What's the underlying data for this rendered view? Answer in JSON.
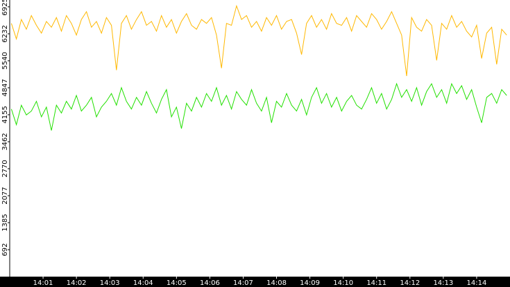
{
  "chart_data": {
    "type": "line",
    "x": [
      0.05,
      0.2,
      0.35,
      0.5,
      0.65,
      0.8,
      0.95,
      1.1,
      1.25,
      1.4,
      1.55,
      1.7,
      1.85,
      2,
      2.15,
      2.3,
      2.45,
      2.6,
      2.75,
      2.9,
      3.05,
      3.2,
      3.35,
      3.5,
      3.65,
      3.8,
      3.95,
      4.1,
      4.25,
      4.4,
      4.55,
      4.7,
      4.85,
      5,
      5.15,
      5.3,
      5.45,
      5.6,
      5.75,
      5.9,
      6.05,
      6.2,
      6.35,
      6.5,
      6.65,
      6.8,
      6.95,
      7.1,
      7.25,
      7.4,
      7.55,
      7.7,
      7.85,
      8,
      8.15,
      8.3,
      8.45,
      8.6,
      8.75,
      8.9,
      9.05,
      9.2,
      9.35,
      9.5,
      9.65,
      9.8,
      9.95,
      10.1,
      10.25,
      10.4,
      10.55,
      10.7,
      10.85,
      11,
      11.15,
      11.3,
      11.45,
      11.6,
      11.75,
      11.9,
      12.05,
      12.2,
      12.35,
      12.5,
      12.65,
      12.8,
      12.95,
      13.1,
      13.25,
      13.4,
      13.55,
      13.7,
      13.85,
      14,
      14.15,
      14.3,
      14.45,
      14.6,
      14.75,
      14.9
    ],
    "series": [
      {
        "color": "#ffb800",
        "values": [
          6500,
          6100,
          6600,
          6350,
          6700,
          6450,
          6250,
          6550,
          6400,
          6650,
          6300,
          6700,
          6500,
          6200,
          6600,
          6800,
          6400,
          6550,
          6250,
          6650,
          6450,
          5300,
          6500,
          6700,
          6350,
          6600,
          6800,
          6450,
          6550,
          6300,
          6700,
          6400,
          6600,
          6250,
          6550,
          6750,
          6450,
          6350,
          6600,
          6500,
          6650,
          6200,
          5350,
          6500,
          6450,
          6950,
          6600,
          6700,
          6400,
          6550,
          6300,
          6650,
          6450,
          6700,
          6350,
          6550,
          6600,
          6250,
          5700,
          6500,
          6700,
          6400,
          6600,
          6350,
          6750,
          6500,
          6450,
          6650,
          6300,
          6700,
          6550,
          6400,
          6750,
          6600,
          6350,
          6550,
          6800,
          6500,
          6200,
          5150,
          6650,
          6400,
          6300,
          6600,
          6450,
          5550,
          6500,
          6350,
          6700,
          6400,
          6550,
          6300,
          6150,
          6450,
          5600,
          6250,
          6400,
          5450,
          6350,
          6200
        ]
      },
      {
        "color": "#22e000",
        "values": [
          4300,
          3900,
          4400,
          4150,
          4250,
          4500,
          4100,
          4350,
          3750,
          4400,
          4200,
          4500,
          4300,
          4650,
          4250,
          4400,
          4600,
          4100,
          4350,
          4500,
          4700,
          4400,
          4850,
          4500,
          4300,
          4600,
          4400,
          4750,
          4450,
          4200,
          4550,
          4800,
          4100,
          4350,
          3800,
          4450,
          4250,
          4600,
          4350,
          4700,
          4500,
          4850,
          4400,
          4650,
          4300,
          4750,
          4550,
          4400,
          4800,
          4450,
          4250,
          4600,
          3950,
          4500,
          4350,
          4700,
          4400,
          4250,
          4550,
          4150,
          4600,
          4850,
          4450,
          4700,
          4350,
          4600,
          4250,
          4500,
          4650,
          4400,
          4300,
          4550,
          4850,
          4450,
          4700,
          4300,
          4550,
          4950,
          4600,
          4800,
          4500,
          4850,
          4400,
          4750,
          4950,
          4600,
          4800,
          4450,
          4950,
          4700,
          4900,
          4550,
          4800,
          4350,
          3950,
          4600,
          4700,
          4450,
          4800,
          4650
        ]
      }
    ],
    "xlim": [
      0,
      15
    ],
    "xticks": [
      {
        "value": 1,
        "label": "14:01"
      },
      {
        "value": 2,
        "label": "14:02"
      },
      {
        "value": 3,
        "label": "14:03"
      },
      {
        "value": 4,
        "label": "14:04"
      },
      {
        "value": 5,
        "label": "14:05"
      },
      {
        "value": 6,
        "label": "14:06"
      },
      {
        "value": 7,
        "label": "14:07"
      },
      {
        "value": 8,
        "label": "14:08"
      },
      {
        "value": 9,
        "label": "14:09"
      },
      {
        "value": 10,
        "label": "14:10"
      },
      {
        "value": 11,
        "label": "14:11"
      },
      {
        "value": 12,
        "label": "14:12"
      },
      {
        "value": 13,
        "label": "14:13"
      },
      {
        "value": 14,
        "label": "14:14"
      }
    ],
    "ylim": [
      0,
      7100
    ],
    "yticks": [
      692,
      1385,
      2077,
      2770,
      3462,
      4155,
      4847,
      5540,
      6232,
      6925
    ]
  }
}
